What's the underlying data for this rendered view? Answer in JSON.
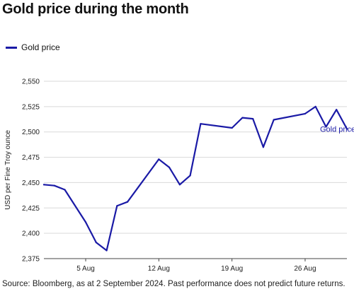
{
  "title": "Gold price during the month",
  "legend": {
    "label": "Gold price"
  },
  "source": "Source: Bloomberg, as at 2 September 2024. Past performance does not predict future returns.",
  "colors": {
    "series": "#1a1aa6",
    "grid": "#d9d9d9",
    "axis": "#444444"
  },
  "chart_data": {
    "type": "line",
    "title": "Gold price during the month",
    "xlabel": "",
    "ylabel": "USD per Fine Troy ounce",
    "ylim": [
      2375,
      2550
    ],
    "yticks": [
      2375,
      2400,
      2425,
      2450,
      2475,
      2500,
      2525,
      2550
    ],
    "ytick_labels": [
      "2,375",
      "2,400",
      "2,425",
      "2,450",
      "2,475",
      "2,500",
      "2,525",
      "2,550"
    ],
    "xlim": [
      "2024-08-01",
      "2024-08-30"
    ],
    "xticks": [
      "2024-08-05",
      "2024-08-12",
      "2024-08-19",
      "2024-08-26"
    ],
    "xtick_labels": [
      "5 Aug",
      "12 Aug",
      "19 Aug",
      "26 Aug"
    ],
    "grid": "horizontal",
    "legend_position": "top-left",
    "series": [
      {
        "name": "Gold price",
        "end_label": "Gold price",
        "x": [
          "2024-08-01",
          "2024-08-02",
          "2024-08-03",
          "2024-08-05",
          "2024-08-06",
          "2024-08-07",
          "2024-08-08",
          "2024-08-09",
          "2024-08-12",
          "2024-08-13",
          "2024-08-14",
          "2024-08-15",
          "2024-08-16",
          "2024-08-19",
          "2024-08-20",
          "2024-08-21",
          "2024-08-22",
          "2024-08-23",
          "2024-08-26",
          "2024-08-27",
          "2024-08-28",
          "2024-08-29",
          "2024-08-30"
        ],
        "y": [
          2448,
          2447,
          2443,
          2411,
          2391,
          2383,
          2427,
          2431,
          2473,
          2465,
          2448,
          2457,
          2508,
          2504,
          2514,
          2513,
          2485,
          2512,
          2518,
          2525,
          2505,
          2522,
          2503
        ]
      }
    ]
  }
}
